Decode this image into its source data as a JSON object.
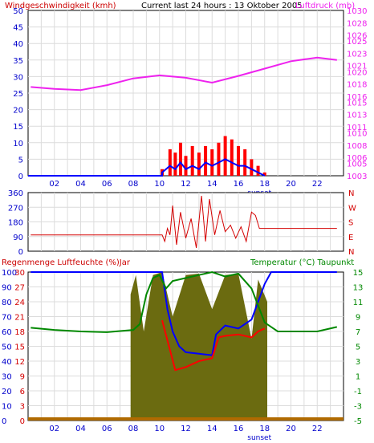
{
  "colors": {
    "wind": "#d40000",
    "gust": "#ff0000",
    "pressure": "#ee22ee",
    "humidity": "#0000cc",
    "temperature": "#ff0000",
    "dewpoint": "#ff0000",
    "rain": "#6b6b10",
    "humidity_line": "#0000ff",
    "temp_line": "#ff0000",
    "green": "#008800",
    "grid": "#dcdcdc",
    "axis_text": "#0000cc"
  },
  "chart_data": [
    {
      "id": "wind-pressure",
      "type": "line",
      "title": "Current last 24 hours : 13 Oktober 2005",
      "ylabel_left": "Windgeschwindigkeit (kmh)",
      "ylabel_right": "Luftdruck (mb)",
      "xticks": [
        "02",
        "04",
        "06",
        "08",
        "10",
        "12",
        "14",
        "16",
        "18",
        "20",
        "22"
      ],
      "sunset_label": "sunset",
      "ylim_left": [
        0,
        50
      ],
      "yticks_left": [
        "0",
        "5",
        "10",
        "15",
        "20",
        "25",
        "30",
        "35",
        "40",
        "45",
        "50"
      ],
      "ylim_right": [
        1003,
        1030
      ],
      "yticks_right": [
        "1003",
        "1005",
        "1006",
        "1008",
        "1010",
        "1011",
        "1013",
        "1015",
        "1016",
        "1018",
        "1020",
        "1021",
        "1023",
        "1025",
        "1026",
        "1028",
        "1030"
      ],
      "series": [
        {
          "key": "pressure",
          "axis": "right",
          "x": [
            0.2,
            2,
            4,
            6,
            8,
            10,
            12,
            14,
            16,
            18,
            20,
            22,
            23.5
          ],
          "values": [
            1017.5,
            1017.2,
            1017.0,
            1017.8,
            1018.9,
            1019.4,
            1019.0,
            1018.2,
            1019.3,
            1020.5,
            1021.7,
            1022.3,
            1021.9
          ]
        },
        {
          "key": "wind_gust",
          "axis": "left",
          "x": [
            10.2,
            10.8,
            11.2,
            11.6,
            12,
            12.5,
            13,
            13.5,
            14,
            14.5,
            15,
            15.5,
            16,
            16.5,
            17,
            17.5,
            18
          ],
          "values": [
            2,
            8,
            7,
            10,
            6,
            9,
            7,
            9,
            8,
            10,
            12,
            11,
            9,
            8,
            5,
            3,
            1
          ]
        },
        {
          "key": "wind_avg",
          "axis": "left",
          "x": [
            10.2,
            10.8,
            11.2,
            11.6,
            12,
            12.5,
            13,
            13.5,
            14,
            14.5,
            15,
            15.5,
            16,
            16.5,
            17,
            17.5,
            18
          ],
          "values": [
            1,
            3,
            2,
            4,
            2,
            3,
            2,
            4,
            3,
            4,
            5,
            4,
            3,
            3,
            2,
            1,
            0
          ]
        }
      ]
    },
    {
      "id": "wind-direction",
      "type": "line",
      "yticks_left": [
        "0",
        "90",
        "180",
        "270",
        "360"
      ],
      "ylim_left": [
        0,
        360
      ],
      "compass_labels": [
        "N",
        "W",
        "S",
        "E",
        "N"
      ],
      "series": [
        {
          "key": "direction",
          "x": [
            0.2,
            10.2,
            10.4,
            10.6,
            10.8,
            11,
            11.3,
            11.6,
            12,
            12.4,
            12.8,
            13.2,
            13.5,
            13.8,
            14.2,
            14.6,
            15,
            15.4,
            15.8,
            16.2,
            16.6,
            17,
            17.3,
            17.6,
            23.5
          ],
          "values": [
            100,
            100,
            60,
            140,
            100,
            280,
            40,
            240,
            80,
            200,
            20,
            340,
            60,
            320,
            100,
            250,
            120,
            160,
            80,
            150,
            60,
            240,
            220,
            140,
            140
          ]
        }
      ]
    },
    {
      "id": "rain-humidity-temp",
      "type": "line",
      "ylabel_left": "Regenmenge Luftfeuchte (%)Jar",
      "ylabel_right": "Temperatur (°C) Taupunkt",
      "xticks": [
        "02",
        "04",
        "06",
        "08",
        "10",
        "12",
        "14",
        "16",
        "18",
        "20",
        "22"
      ],
      "sunset_label": "sunset",
      "yticks_left_outer": [
        "0",
        "10",
        "20",
        "30",
        "40",
        "50",
        "60",
        "70",
        "80",
        "90",
        "100"
      ],
      "yticks_left_inner": [
        "0",
        "3",
        "6",
        "9",
        "12",
        "15",
        "18",
        "21",
        "24",
        "27",
        "30"
      ],
      "ylim_left": [
        0,
        100
      ],
      "yticks_right": [
        "-5",
        "-3",
        "-1",
        "1",
        "3",
        "5",
        "7",
        "9",
        "11",
        "13",
        "15"
      ],
      "ylim_right": [
        -5,
        15
      ],
      "series": [
        {
          "key": "rain",
          "axis": "left",
          "x": [
            7.8,
            8.2,
            8.8,
            9.5,
            10.2,
            11,
            12,
            13,
            14,
            15,
            16,
            17,
            17.5,
            18.2
          ],
          "values": [
            85,
            98,
            60,
            98,
            100,
            70,
            98,
            99,
            75,
            98,
            99,
            55,
            95,
            80
          ]
        },
        {
          "key": "humidity",
          "axis": "left",
          "x": [
            0.2,
            10.2,
            10.6,
            11,
            11.5,
            12,
            13,
            14,
            14.3,
            15,
            16,
            17,
            17.5,
            18,
            18.5,
            23.5
          ],
          "values": [
            100,
            100,
            75,
            60,
            50,
            46,
            45,
            44,
            58,
            64,
            62,
            68,
            80,
            92,
            100,
            100
          ]
        },
        {
          "key": "temperature",
          "axis": "right",
          "x": [
            0.2,
            2,
            4,
            6,
            8,
            8.5,
            9,
            9.5,
            10,
            10.5,
            11,
            12,
            13,
            14,
            15,
            16,
            17,
            18,
            19,
            20,
            22,
            23.5
          ],
          "values": [
            7.5,
            7.2,
            7.0,
            6.9,
            7.2,
            8.0,
            12.0,
            14.2,
            14.6,
            12.8,
            13.8,
            14.2,
            14.6,
            15.0,
            14.4,
            14.8,
            12.8,
            8.2,
            7.0,
            7.0,
            7.0,
            7.6
          ]
        },
        {
          "key": "dewpoint",
          "axis": "right",
          "x": [
            10.2,
            10.8,
            11.2,
            12,
            13,
            14,
            14.5,
            15,
            16,
            17,
            17.5,
            18
          ],
          "values": [
            8.5,
            4.5,
            1.8,
            2.2,
            3.0,
            3.4,
            6.2,
            6.4,
            6.6,
            6.2,
            7.0,
            7.4
          ]
        }
      ]
    }
  ]
}
